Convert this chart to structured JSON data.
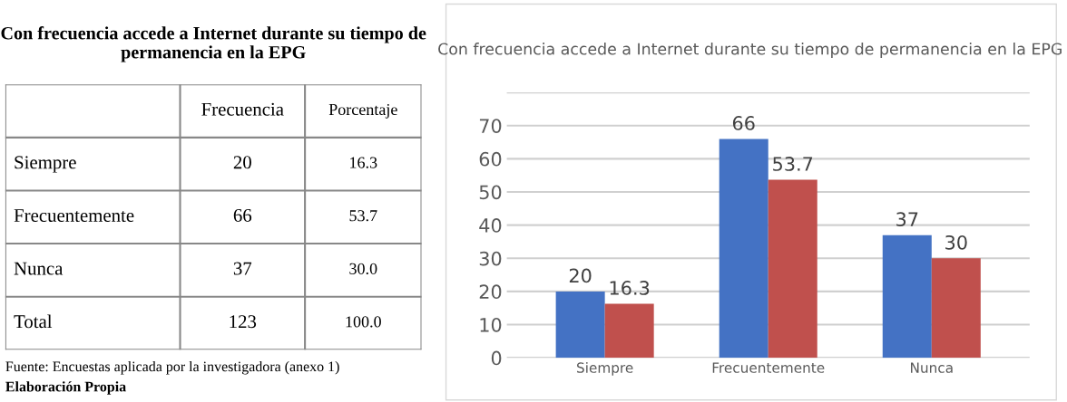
{
  "chart_data": [
    {
      "type": "other",
      "title": "Con frecuencia accede a Internet durante su tiempo de permanencia en la EPG",
      "categories": [
        "Siempre",
        "Frecuentemente",
        "Nunca",
        "Total"
      ],
      "data_labels": true,
      "series": [
        {
          "name": "Frecuencia",
          "values": [
            20,
            66,
            37,
            123
          ],
          "value_labels": [
            "20",
            "66",
            "37",
            "123"
          ]
        },
        {
          "name": "Porcentaje",
          "values": [
            16.3,
            53.7,
            30.0,
            100.0
          ],
          "value_labels": [
            "16.3",
            "53.7",
            "30.0",
            "100.0"
          ]
        }
      ],
      "annotations": [
        "Fuente: Encuestas aplicada por la investigadora (anexo 1)",
        "Elaboración Propia"
      ]
    },
    {
      "type": "bar",
      "title": "Con frecuencia accede a Internet durante su tiempo de permanencia en la EPG",
      "categories": [
        "Siempre",
        "Frecuentemente",
        "Nunca"
      ],
      "series": [
        {
          "color": "#4472c4",
          "values": [
            20,
            66,
            37
          ]
        },
        {
          "color": "#c0504d",
          "values": [
            16.3,
            53.7,
            30
          ]
        }
      ],
      "ylim": [
        0,
        80
      ],
      "yticks": [
        0,
        10,
        20,
        30,
        40,
        50,
        60,
        70,
        {
          "value": 80,
          "label": null
        }
      ],
      "grid": "y",
      "data_labels": true,
      "legend": false
    }
  ]
}
